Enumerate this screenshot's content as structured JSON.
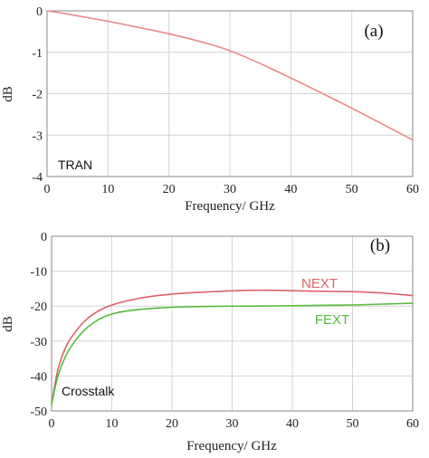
{
  "chart_data": [
    {
      "type": "line",
      "panel_label": "(a)",
      "annotation": "TRAN",
      "xlabel": "Frequency/ GHz",
      "ylabel": "dB",
      "xlim": [
        0,
        60
      ],
      "ylim": [
        -4,
        0
      ],
      "x_ticks": [
        0,
        10,
        20,
        30,
        40,
        50,
        60
      ],
      "y_ticks": [
        0,
        -1,
        -2,
        -3,
        -4
      ],
      "grid": true,
      "series": [
        {
          "color": "#e88a8a",
          "x": [
            0,
            2,
            5,
            10,
            15,
            20,
            25,
            30,
            35,
            40,
            45,
            50,
            55,
            60
          ],
          "y": [
            0,
            -0.04,
            -0.12,
            -0.25,
            -0.4,
            -0.55,
            -0.73,
            -0.95,
            -1.27,
            -1.62,
            -1.98,
            -2.35,
            -2.73,
            -3.12
          ]
        }
      ]
    },
    {
      "type": "line",
      "panel_label": "(b)",
      "annotation": "Crosstalk",
      "xlabel": "Frequency/ GHz",
      "ylabel": "dB",
      "xlim": [
        0,
        60
      ],
      "ylim": [
        -50,
        0
      ],
      "x_ticks": [
        0,
        10,
        20,
        30,
        40,
        50,
        60
      ],
      "y_ticks": [
        0,
        -10,
        -20,
        -30,
        -40,
        -50
      ],
      "grid": true,
      "series": [
        {
          "name": "NEXT",
          "color": "#e0606a",
          "x": [
            0,
            0.5,
            1,
            2,
            3,
            5,
            7,
            10,
            15,
            20,
            25,
            30,
            35,
            40,
            45,
            50,
            55,
            60
          ],
          "y": [
            -48,
            -43,
            -38,
            -33,
            -29.5,
            -25,
            -22,
            -19.5,
            -17.5,
            -16.5,
            -16,
            -15.6,
            -15.4,
            -15.6,
            -15.8,
            -15.8,
            -16.2,
            -17
          ]
        },
        {
          "name": "FEXT",
          "color": "#55bb3a",
          "x": [
            0,
            0.5,
            1,
            2,
            3,
            5,
            7,
            10,
            15,
            20,
            25,
            30,
            35,
            40,
            45,
            50,
            55,
            60
          ],
          "y": [
            -48,
            -44,
            -40,
            -35.5,
            -32,
            -27.5,
            -24.5,
            -22,
            -20.8,
            -20.3,
            -20.1,
            -20,
            -20,
            -19.9,
            -19.8,
            -19.7,
            -19.4,
            -19.2
          ]
        }
      ]
    }
  ]
}
